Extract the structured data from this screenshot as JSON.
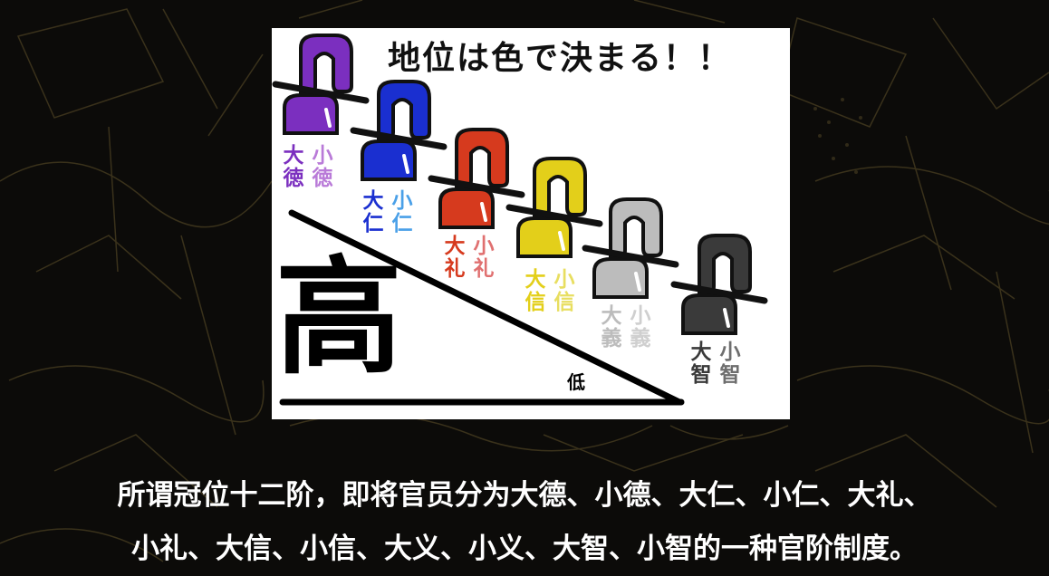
{
  "slide": {
    "title": "地位は色で決まる！！",
    "high_label": "高",
    "low_label": "低",
    "ranks": [
      {
        "great": "大徳",
        "small": "小徳",
        "color": "#7b2fbf",
        "light": "#b97ad8"
      },
      {
        "great": "大仁",
        "small": "小仁",
        "color": "#1a2fd0",
        "light": "#4aa0e8"
      },
      {
        "great": "大礼",
        "small": "小礼",
        "color": "#d63a1e",
        "light": "#e07070"
      },
      {
        "great": "大信",
        "small": "小信",
        "color": "#e3cf1a",
        "light": "#e8de60"
      },
      {
        "great": "大義",
        "small": "小義",
        "color": "#bcbcbc",
        "light": "#cfcfcf"
      },
      {
        "great": "大智",
        "small": "小智",
        "color": "#3a3a3a",
        "light": "#6e6e6e"
      }
    ]
  },
  "caption": {
    "line1": "所谓冠位十二阶，即将官员分为大德、小德、大仁、小仁、大礼、",
    "line2": "小礼、大信、小信、大义、小义、大智、小智的一种官阶制度。"
  }
}
